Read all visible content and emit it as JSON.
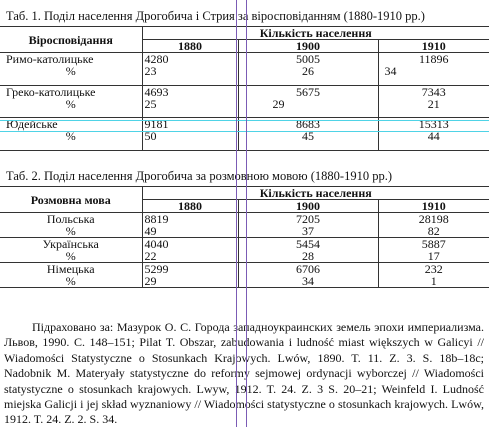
{
  "table1": {
    "caption": "Таб. 1. Поділ населення Дрогобича і Стрия за віросповіданням (1880-1910 рр.)",
    "header_label": "Віросповідання",
    "header_group": "Кількість населення",
    "years": [
      "1880",
      "1900",
      "1910"
    ],
    "rows": [
      {
        "name": "Римо-католицьке",
        "count": [
          "4280",
          "5005",
          "11896"
        ],
        "pct_label": "%",
        "pct": [
          "23",
          "26",
          "34"
        ]
      },
      {
        "name": "Греко-католицьке",
        "count": [
          "4693",
          "5675",
          "7343"
        ],
        "pct_label": "%",
        "pct": [
          "25",
          "29",
          "21"
        ]
      },
      {
        "name": "Юдейське",
        "count": [
          "9181",
          "8683",
          "15313"
        ],
        "pct_label": "%",
        "pct": [
          "50",
          "45",
          "44"
        ]
      }
    ]
  },
  "table2": {
    "caption": "Таб. 2. Поділ населення Дрогобича за розмовною мовою (1880-1910 рр.)",
    "header_label": "Розмовна мова",
    "header_group": "Кількість населення",
    "years": [
      "1880",
      "1900",
      "1910"
    ],
    "rows": [
      {
        "name": "Польська",
        "count": [
          "8819",
          "7205",
          "28198"
        ],
        "pct_label": "%",
        "pct": [
          "49",
          "37",
          "82"
        ]
      },
      {
        "name": "Українська",
        "count": [
          "4040",
          "5454",
          "5887"
        ],
        "pct_label": "%",
        "pct": [
          "22",
          "28",
          "17"
        ]
      },
      {
        "name": "Німецька",
        "count": [
          "5299",
          "6706",
          "232"
        ],
        "pct_label": "%",
        "pct": [
          "29",
          "34",
          "1"
        ]
      }
    ]
  },
  "references": "Підраховано за: Мазурок О. С. Города западноукраинских земель эпохи империализма. Львов, 1990. С. 148–151; Pilat T. Obszar, zabudowania i ludność miast większych w Galicyi // Wiadomości Statystyczne o Stosunkach Krajowych. Lwów, 1890. T. 11. Z. 3. S. 18b–18c; Nadobnik M. Materyały statystyczne do reformy sejmowej ordynacji wyborczej // Wiadomości statystyczne o stosunkach krajowych. Lwyw, 1912. T. 24. Z. 3 S. 20–21; Weinfeld I. Ludność miejska Galicji i jej skład wyznaniowy // Wiadomości statystyczne o stosunkach krajowych. Lwów, 1912. T. 24. Z. 2. S. 34.",
  "colors": {
    "highlight": "#4fd3e6",
    "guide": "#7b5bb5"
  }
}
